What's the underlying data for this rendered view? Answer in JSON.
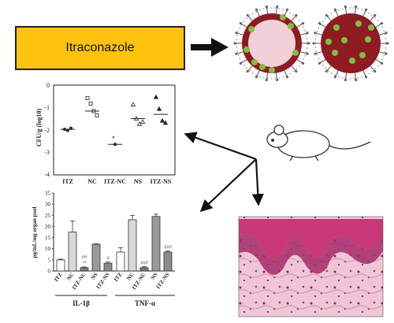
{
  "drug_label": "Itraconazole",
  "colors": {
    "drug_box": "#ffc20e",
    "nanoparticle_core": "#8e1b22",
    "nanoparticle_dots": "#7cbf42",
    "histology_tissue": "#c83878"
  },
  "icons": [
    "big-arrow-icon",
    "nanoparticle-icon",
    "mouse-icon",
    "histology-image"
  ],
  "top_chart": {
    "ylabel": "CFU/g (log10)",
    "yticks": [
      "0",
      "-1",
      "-2",
      "-3",
      "-4"
    ],
    "ylim": [
      -4,
      0
    ],
    "categories": [
      "ITZ",
      "NC",
      "ITZ-NC",
      "NS",
      "ITZ-NS"
    ],
    "annotations": [
      "*"
    ]
  },
  "bottom_chart": {
    "ylabel": "pg/mL/mg organ pool",
    "yticks": [
      "0",
      "5",
      "10",
      "15",
      "20",
      "25",
      "30",
      "35"
    ],
    "ylim": [
      0,
      35
    ],
    "categories": [
      "ITZ",
      "NC",
      "ITZ-NC",
      "NS",
      "ITZ-NS"
    ],
    "groups": [
      "IL-1β",
      "TNF-α"
    ],
    "sig_labels": [
      "##",
      "**",
      "#",
      "###",
      "###"
    ]
  },
  "chart_data": [
    {
      "type": "scatter",
      "categories": [
        "ITZ",
        "NC",
        "ITZ-NC",
        "NS",
        "ITZ-NS"
      ],
      "ylabel": "CFU/g (log10)",
      "ylim": [
        -4,
        0
      ],
      "points": [
        {
          "category": "ITZ",
          "values": [
            -1.95,
            -2.0,
            -1.9
          ],
          "mean": -1.95
        },
        {
          "category": "NC",
          "values": [
            -0.5,
            -0.75,
            -1.1,
            -1.3
          ],
          "mean": -1.1
        },
        {
          "category": "ITZ-NC",
          "values": [
            -2.65
          ],
          "mean": -2.65
        },
        {
          "category": "NS",
          "values": [
            -0.8,
            -1.45,
            -1.7,
            -1.6
          ],
          "mean": -1.45
        },
        {
          "category": "ITZ-NS",
          "values": [
            -0.45,
            -1.0,
            -1.55,
            -1.65
          ],
          "mean": -1.25
        }
      ],
      "annotations": [
        {
          "category": "ITZ-NC",
          "text": "*"
        }
      ]
    },
    {
      "type": "bar",
      "ylabel": "pg/mL/mg organ pool",
      "ylim": [
        0,
        35
      ],
      "groups": [
        {
          "name": "IL-1β",
          "categories": [
            "ITZ",
            "NC",
            "ITZ-NC",
            "NS",
            "ITZ-NS"
          ],
          "values": [
            5,
            17.5,
            1.5,
            12,
            3.5
          ],
          "errors": [
            0.3,
            5,
            0.3,
            0.2,
            0.6
          ],
          "sig": [
            "",
            "",
            "##\n**",
            "",
            "#"
          ]
        },
        {
          "name": "TNF-α",
          "categories": [
            "ITZ",
            "NC",
            "ITZ-NC",
            "NS",
            "ITZ-NS"
          ],
          "values": [
            8.5,
            23,
            1.5,
            24.5,
            8.5
          ],
          "errors": [
            2,
            2,
            0.5,
            1,
            0.5
          ],
          "sig": [
            "",
            "",
            "###",
            "",
            "###"
          ]
        }
      ]
    }
  ]
}
